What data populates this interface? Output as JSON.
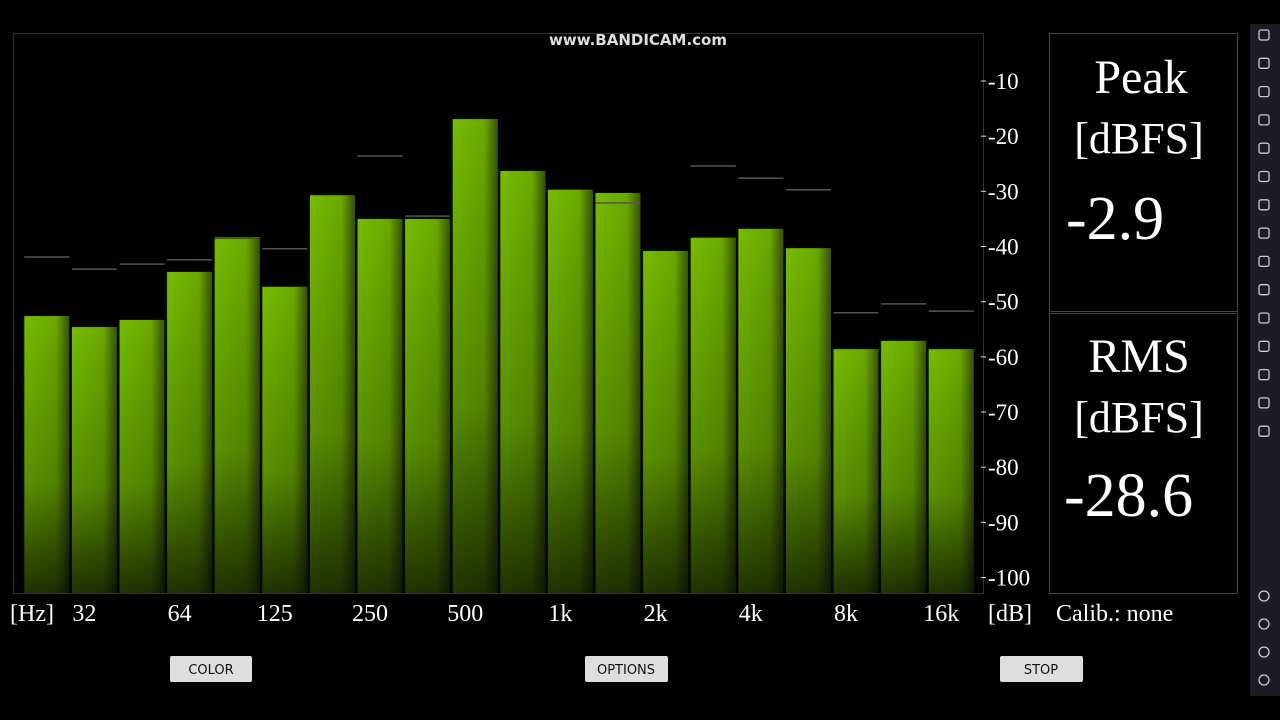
{
  "watermark": "www.BANDICAM.com",
  "chart_data": {
    "type": "bar",
    "categories": [
      null,
      "32",
      null,
      "64",
      null,
      "125",
      null,
      "250",
      null,
      "500",
      null,
      "1k",
      null,
      "2k",
      null,
      "4k",
      null,
      "8k",
      null,
      "16k"
    ],
    "x_unit": "[Hz]",
    "y_unit": "[dB]",
    "series": [
      {
        "color": "#6fb400",
        "values": [
          -52.6,
          -54.6,
          -53.3,
          -44.6,
          -38.6,
          -47.3,
          -30.7,
          -35.0,
          -35.0,
          -16.9,
          -26.3,
          -29.7,
          -30.3,
          -40.8,
          -38.4,
          -36.8,
          -40.3,
          -58.6,
          -57.1,
          -58.6
        ]
      },
      {
        "color": "#555555",
        "values": [
          -41.9,
          -44.1,
          -43.2,
          -42.4,
          -38.4,
          -40.4,
          null,
          -23.6,
          -34.5,
          null,
          null,
          null,
          -32.1,
          null,
          -25.4,
          -27.6,
          -29.7,
          -52.0,
          -50.4,
          -51.7
        ]
      }
    ],
    "ylim": [
      -102.8,
      -1.3
    ],
    "yticks": [
      -10,
      -20,
      -30,
      -40,
      -50,
      -60,
      -70,
      -80,
      -90,
      -100
    ]
  },
  "meters": [
    {
      "label": "Peak",
      "unit": "[dBFS]",
      "value": -2.9
    },
    {
      "label": "RMS",
      "unit": "[dBFS]",
      "value": -28.6
    }
  ],
  "calibration": "Calib.: none",
  "buttons": [
    "COLOR",
    "OPTIONS",
    "STOP"
  ]
}
